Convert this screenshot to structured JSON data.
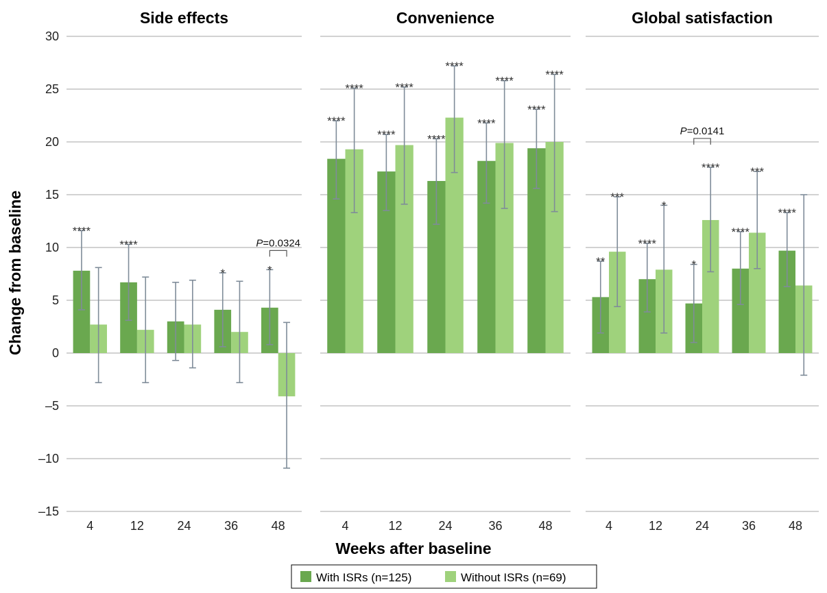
{
  "chart_data": {
    "type": "bar",
    "ylabel": "Change from baseline",
    "xlabel": "Weeks after baseline",
    "ylim": [
      -15,
      30
    ],
    "yticks": [
      -15,
      -10,
      -5,
      0,
      5,
      10,
      15,
      20,
      25,
      30
    ],
    "ytick_labels": [
      "–15",
      "–10",
      "–5",
      "0",
      "5",
      "10",
      "15",
      "20",
      "25",
      "30"
    ],
    "grid": true,
    "legend": {
      "position": "bottom-center",
      "entries": [
        {
          "label": "With ISRs (n=125)",
          "color": "#6aa84f"
        },
        {
          "label": "Without ISRs (n=69)",
          "color": "#9fd27c"
        }
      ]
    },
    "panels": [
      {
        "title": "Side effects",
        "categories": [
          "4",
          "12",
          "24",
          "36",
          "48"
        ],
        "series": [
          {
            "name": "With ISRs (n=125)",
            "values": [
              7.8,
              6.7,
              3.0,
              4.1,
              4.3
            ],
            "err_low": [
              4.1,
              3.1,
              -0.7,
              0.6,
              0.8
            ],
            "err_high": [
              11.6,
              10.3,
              6.7,
              7.6,
              7.9
            ],
            "sig": [
              "****",
              "****",
              "",
              "*",
              "*"
            ]
          },
          {
            "name": "Without ISRs (n=69)",
            "values": [
              2.7,
              2.2,
              2.7,
              2.0,
              -4.1
            ],
            "err_low": [
              -2.8,
              -2.8,
              -1.4,
              -2.8,
              -10.9
            ],
            "err_high": [
              8.1,
              7.2,
              6.9,
              6.8,
              2.9
            ],
            "sig": [
              "",
              "",
              "",
              "",
              ""
            ]
          }
        ],
        "comparison": {
          "category_index": 4,
          "p_italic": "P",
          "p_value": "=0.0324"
        }
      },
      {
        "title": "Convenience",
        "categories": [
          "4",
          "12",
          "24",
          "36",
          "48"
        ],
        "series": [
          {
            "name": "With ISRs (n=125)",
            "values": [
              18.4,
              17.2,
              16.3,
              18.2,
              19.4
            ],
            "err_low": [
              14.6,
              13.5,
              12.2,
              14.2,
              15.6
            ],
            "err_high": [
              22.0,
              20.7,
              20.3,
              21.8,
              23.1
            ],
            "sig": [
              "****",
              "****",
              "****",
              "****",
              "****"
            ]
          },
          {
            "name": "Without ISRs (n=69)",
            "values": [
              19.3,
              19.7,
              22.3,
              19.9,
              20.0
            ],
            "err_low": [
              13.3,
              14.1,
              17.1,
              13.7,
              13.4
            ],
            "err_high": [
              25.1,
              25.2,
              27.2,
              25.8,
              26.4
            ],
            "sig": [
              "****",
              "****",
              "****",
              "****",
              "****"
            ]
          }
        ]
      },
      {
        "title": "Global satisfaction",
        "categories": [
          "4",
          "12",
          "24",
          "36",
          "48"
        ],
        "series": [
          {
            "name": "With ISRs (n=125)",
            "values": [
              5.3,
              7.0,
              4.7,
              8.0,
              9.7
            ],
            "err_low": [
              1.9,
              3.9,
              1.0,
              4.6,
              6.3
            ],
            "err_high": [
              8.7,
              10.4,
              8.4,
              11.5,
              13.3
            ],
            "sig": [
              "**",
              "****",
              "*",
              "****",
              "****"
            ]
          },
          {
            "name": "Without ISRs (n=69)",
            "values": [
              9.6,
              7.9,
              12.6,
              11.4,
              6.4
            ],
            "err_low": [
              4.4,
              1.9,
              7.7,
              8.0,
              -2.1
            ],
            "err_high": [
              14.8,
              14.0,
              17.6,
              17.2,
              15.0
            ],
            "sig": [
              "***",
              "*",
              "****",
              "***",
              ""
            ]
          }
        ],
        "comparison": {
          "category_index": 2,
          "p_italic": "P",
          "p_value": "=0.0141"
        }
      }
    ]
  }
}
